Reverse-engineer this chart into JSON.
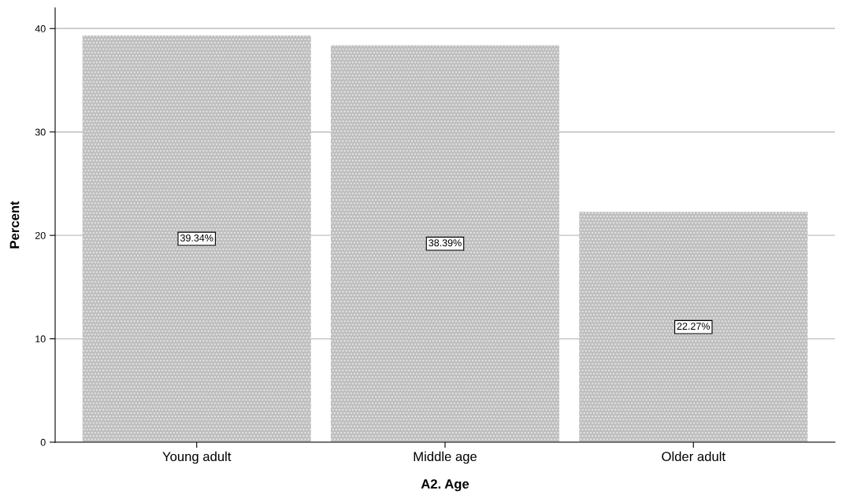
{
  "chart_data": {
    "type": "bar",
    "xlabel": "A2. Age",
    "ylabel": "Percent",
    "categories": [
      "Young adult",
      "Middle age",
      "Older adult"
    ],
    "values": [
      39.34,
      38.39,
      22.27
    ],
    "value_labels": [
      "39.34%",
      "38.39%",
      "22.27%"
    ],
    "color": "#bfbfbf",
    "ylim": [
      0,
      42
    ],
    "yticks": [
      0,
      10,
      20,
      30,
      40
    ],
    "grid": "y",
    "legend": false
  }
}
